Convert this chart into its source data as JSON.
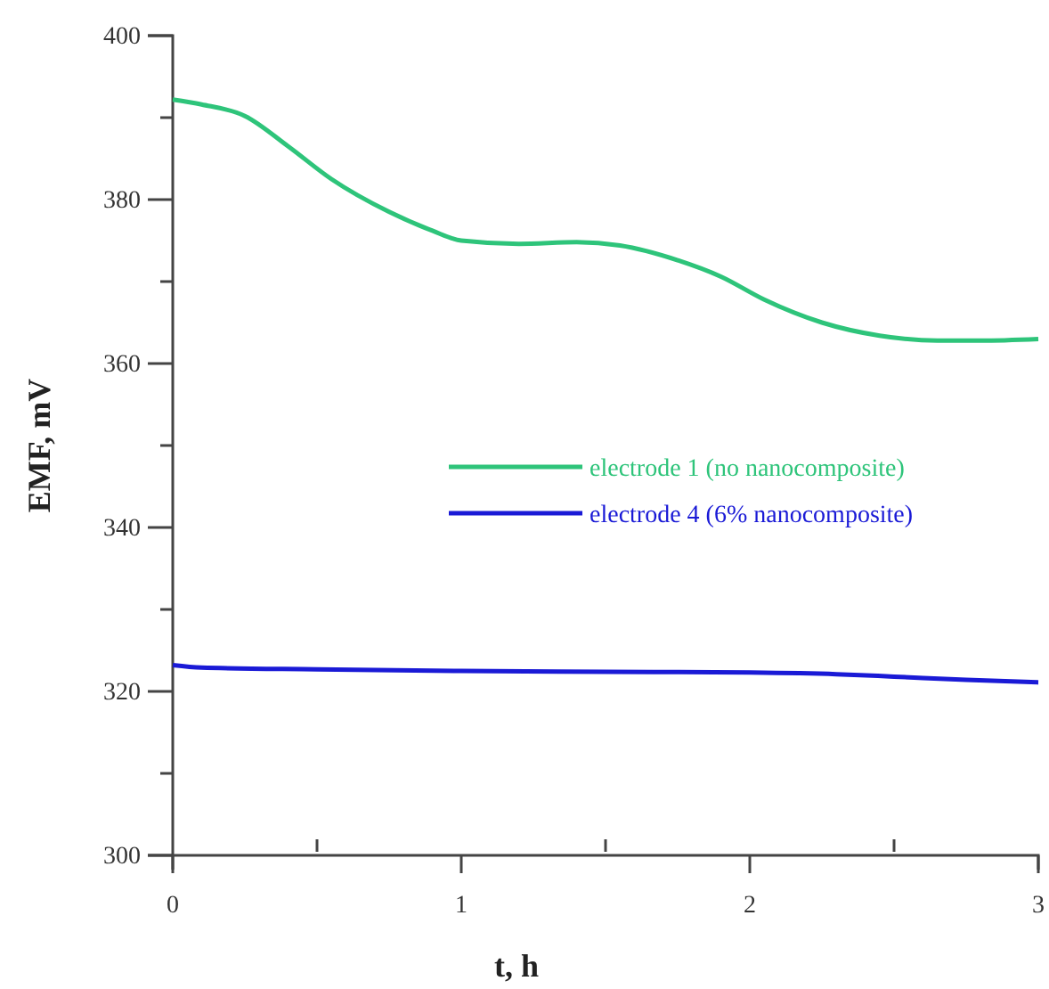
{
  "chart_data": {
    "type": "line",
    "xlabel": "t, h",
    "ylabel": "EMF, mV",
    "xlim": [
      0,
      3
    ],
    "ylim": [
      300,
      400
    ],
    "xticks": [
      0,
      {
        "value": 0.5,
        "label": null
      },
      1,
      {
        "value": 1.5,
        "label": null
      },
      2,
      {
        "value": 2.5,
        "label": null
      },
      3
    ],
    "yticks": [
      300,
      {
        "value": 310,
        "label": null
      },
      320,
      {
        "value": 330,
        "label": null
      },
      340,
      {
        "value": 350,
        "label": null
      },
      360,
      {
        "value": 370,
        "label": null
      },
      380,
      {
        "value": 390,
        "label": null
      },
      400
    ],
    "grid": false,
    "legend": "right",
    "marker": "none",
    "line_style": "solid",
    "series": [
      {
        "name": "electrode 1 (no nanocomposite)",
        "color": "#2ec47a",
        "x": [
          0,
          0.1,
          0.25,
          0.4,
          0.55,
          0.75,
          0.9,
          1.0,
          1.2,
          1.4,
          1.55,
          1.75,
          1.9,
          2.05,
          2.25,
          2.45,
          2.65,
          2.8,
          3.0
        ],
        "values": [
          392.2,
          391.6,
          390.2,
          386.5,
          382.5,
          378.5,
          376.2,
          375.0,
          374.6,
          374.8,
          374.4,
          372.6,
          370.6,
          367.8,
          365.0,
          363.4,
          362.8,
          362.8,
          363.0
        ]
      },
      {
        "name": "electrode 4 (6% nanocomposite)",
        "color": "#1a1ad6",
        "x": [
          0,
          0.1,
          0.5,
          1.0,
          1.5,
          2.0,
          2.3,
          2.5,
          2.75,
          3.0
        ],
        "values": [
          323.2,
          322.9,
          322.7,
          322.5,
          322.4,
          322.3,
          322.1,
          321.8,
          321.4,
          321.1
        ]
      }
    ]
  }
}
